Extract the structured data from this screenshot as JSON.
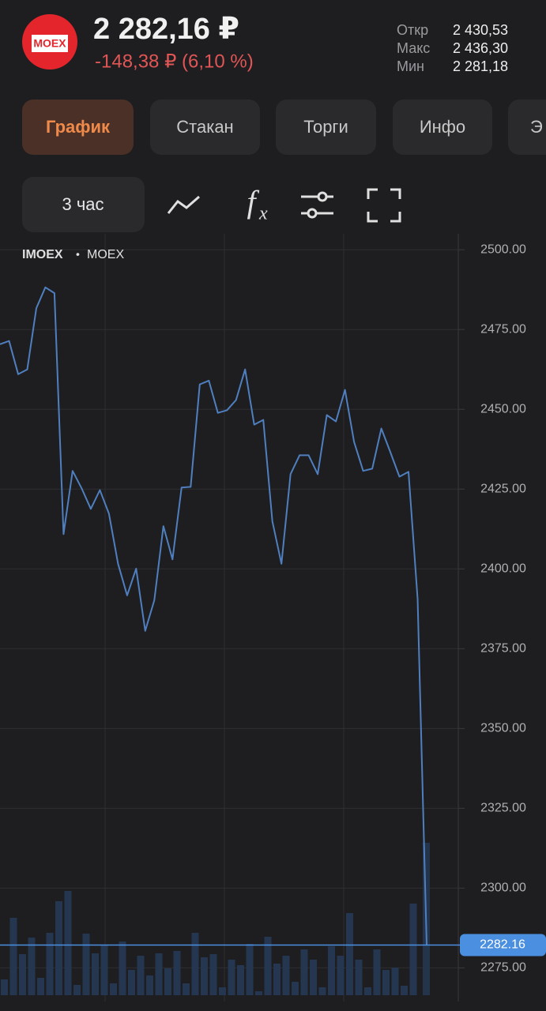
{
  "header": {
    "logo_text": "MOEX",
    "price": "2 282,16 ₽",
    "change": "-148,38 ₽ (6,10 %)",
    "stats": [
      {
        "label": "Откр",
        "value": "2 430,53"
      },
      {
        "label": "Макс",
        "value": "2 436,30"
      },
      {
        "label": "Мин",
        "value": "2 281,18"
      }
    ]
  },
  "tabs": [
    "График",
    "Стакан",
    "Торги",
    "Инфо",
    "Э"
  ],
  "toolbar": {
    "interval": "3 час"
  },
  "chart_data": {
    "type": "line",
    "symbol": "IMOEX",
    "exchange": "MOEX",
    "color": "#4f7fbf",
    "values": [
      2470.4,
      2471.4,
      2461.0,
      2462.5,
      2481.7,
      2488.2,
      2486.4,
      2410.9,
      2430.7,
      2425.2,
      2418.8,
      2424.7,
      2417.3,
      2401.6,
      2391.7,
      2400.1,
      2380.6,
      2390.2,
      2413.4,
      2403.0,
      2425.5,
      2425.7,
      2457.8,
      2459.0,
      2448.9,
      2449.7,
      2452.9,
      2462.5,
      2445.2,
      2446.7,
      2414.9,
      2401.6,
      2429.7,
      2435.6,
      2435.6,
      2429.7,
      2448.2,
      2446.2,
      2456.1,
      2439.8,
      2430.7,
      2431.4,
      2444.0,
      2436.6,
      2428.9,
      2430.4,
      2390.7,
      2282.16
    ],
    "current_price_label": "2282.16",
    "current_price_color": "#4a8fe0",
    "volume": {
      "color": "#243650",
      "values": [
        20,
        98,
        52,
        73,
        22,
        79,
        119,
        132,
        13,
        78,
        53,
        64,
        15,
        68,
        32,
        50,
        25,
        53,
        34,
        56,
        15,
        79,
        48,
        52,
        10,
        45,
        38,
        65,
        5,
        74,
        40,
        50,
        17,
        58,
        45,
        10,
        62,
        50,
        104,
        45,
        10,
        58,
        32,
        35,
        12,
        116,
        193
      ]
    },
    "ylim": [
      2273,
      2504
    ],
    "yticks": [
      {
        "value": 2275,
        "label": "2275.00"
      },
      {
        "value": 2300,
        "label": "2300.00"
      },
      {
        "value": 2325,
        "label": "2325.00"
      },
      {
        "value": 2350,
        "label": "2350.00"
      },
      {
        "value": 2375,
        "label": "2375.00"
      },
      {
        "value": 2400,
        "label": "2400.00"
      },
      {
        "value": 2425,
        "label": "2425.00"
      },
      {
        "value": 2450,
        "label": "2450.00"
      },
      {
        "value": 2475,
        "label": "2475.00"
      },
      {
        "value": 2500,
        "label": "2500.00"
      }
    ],
    "grid": true
  }
}
